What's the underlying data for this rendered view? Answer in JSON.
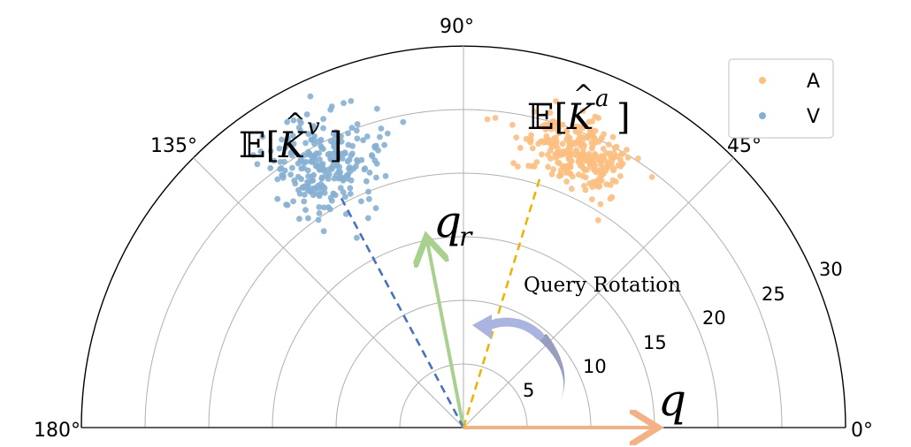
{
  "chart_data": {
    "type": "scatter",
    "projection": "polar",
    "theta_range_deg": [
      0,
      180
    ],
    "r_range": [
      0,
      30
    ],
    "grid": true,
    "angle_tick_labels": [
      "0°",
      "45°",
      "90°",
      "135°",
      "180°"
    ],
    "radial_tick_labels": [
      "5",
      "10",
      "15",
      "20",
      "25",
      "30"
    ],
    "radial_ticks": [
      5,
      10,
      15,
      20,
      25,
      30
    ],
    "legend": {
      "placement": "top-right",
      "entries": [
        "A",
        "V"
      ]
    },
    "series": [
      {
        "name": "A",
        "color": "#fdbf7f",
        "center_theta_deg": 68,
        "center_r": 23.5,
        "spread_theta_deg": 10,
        "spread_r": 2.4,
        "count": 260
      },
      {
        "name": "V",
        "color": "#86b0d3",
        "center_theta_deg": 118,
        "center_r": 23.5,
        "spread_theta_deg": 9,
        "spread_r": 3.4,
        "count": 260
      }
    ],
    "vectors": [
      {
        "name": "q",
        "label": "q",
        "theta_deg": 0,
        "r": 15,
        "color": "#f4b183",
        "style": "solid-arrow"
      },
      {
        "name": "q_r",
        "label": "q",
        "label_sub": "r",
        "theta_deg": 101,
        "r": 15,
        "color": "#a9d18e",
        "style": "solid-arrow"
      },
      {
        "name": "mean_Kv",
        "theta_deg": 118,
        "r": 20.5,
        "color": "#4472c4",
        "style": "dashed"
      },
      {
        "name": "mean_Ka",
        "theta_deg": 73,
        "r": 20.5,
        "color": "#f0b400",
        "style": "dashed"
      }
    ],
    "annotations": [
      {
        "name": "query-rotation",
        "text": "Query Rotation"
      },
      {
        "name": "expected-key-a",
        "text_main": "𝔼[",
        "text_key": "K",
        "text_hat": "^",
        "text_sup": "a",
        "text_close": "]"
      },
      {
        "name": "expected-key-v",
        "text_main": "𝔼[",
        "text_key": "K",
        "text_hat": "^",
        "text_sup": "v",
        "text_close": "]"
      }
    ]
  }
}
